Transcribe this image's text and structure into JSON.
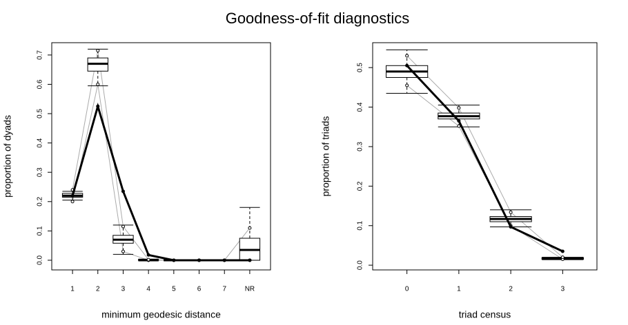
{
  "title": "Goodness-of-fit diagnostics",
  "chart_data": [
    {
      "type": "boxplot",
      "xlabel": "minimum geodesic distance",
      "ylabel": "proportion of dyads",
      "categories": [
        "1",
        "2",
        "3",
        "4",
        "5",
        "6",
        "7",
        "NR"
      ],
      "ylim": [
        -0.033,
        0.742
      ],
      "yticks": [
        {
          "value": 0,
          "label": "0.0"
        },
        0.1,
        0.2,
        0.3,
        0.4,
        0.5,
        0.6,
        0.7
      ],
      "whisker_low": [
        0.205,
        0.595,
        0.02,
        0,
        0,
        0,
        0,
        0
      ],
      "q1": [
        0.215,
        0.645,
        0.058,
        0,
        0,
        0,
        0,
        0
      ],
      "median": [
        0.22,
        0.67,
        0.07,
        0,
        0,
        0,
        0,
        0.035
      ],
      "q3": [
        0.228,
        0.69,
        0.085,
        0.002,
        0,
        0,
        0,
        0.075
      ],
      "whisker_high": [
        0.235,
        0.72,
        0.12,
        0.004,
        0,
        0,
        0,
        0.18
      ],
      "quantile_low": [
        0.2,
        0.6,
        0.03,
        0,
        0,
        0,
        0,
        0
      ],
      "quantile_high": [
        0.24,
        0.715,
        0.115,
        0.002,
        0,
        0,
        0,
        0.11
      ],
      "observed": [
        0.22,
        0.525,
        0.235,
        0.018,
        0,
        0,
        0,
        0
      ],
      "observed_color": "#000000",
      "simulation_color": "#aaaaaa"
    },
    {
      "type": "boxplot",
      "xlabel": "triad census",
      "ylabel": "proportion of triads",
      "categories": [
        "0",
        "1",
        "2",
        "3"
      ],
      "ylim": [
        -0.012,
        0.563
      ],
      "yticks": [
        {
          "value": 0,
          "label": "0.0"
        },
        0.1,
        0.2,
        0.3,
        0.4,
        0.5
      ],
      "whisker_low": [
        0.435,
        0.35,
        0.097,
        0.014
      ],
      "q1": [
        0.475,
        0.37,
        0.11,
        0.015
      ],
      "median": [
        0.49,
        0.377,
        0.117,
        0.017
      ],
      "q3": [
        0.505,
        0.385,
        0.123,
        0.019
      ],
      "whisker_high": [
        0.545,
        0.405,
        0.14,
        0.02
      ],
      "quantile_low": [
        0.455,
        0.352,
        0.1,
        0.015
      ],
      "quantile_high": [
        0.53,
        0.398,
        0.134,
        0.02
      ],
      "observed": [
        0.505,
        0.365,
        0.097,
        0.035
      ],
      "observed_color": "#000000",
      "simulation_color": "#aaaaaa"
    }
  ]
}
